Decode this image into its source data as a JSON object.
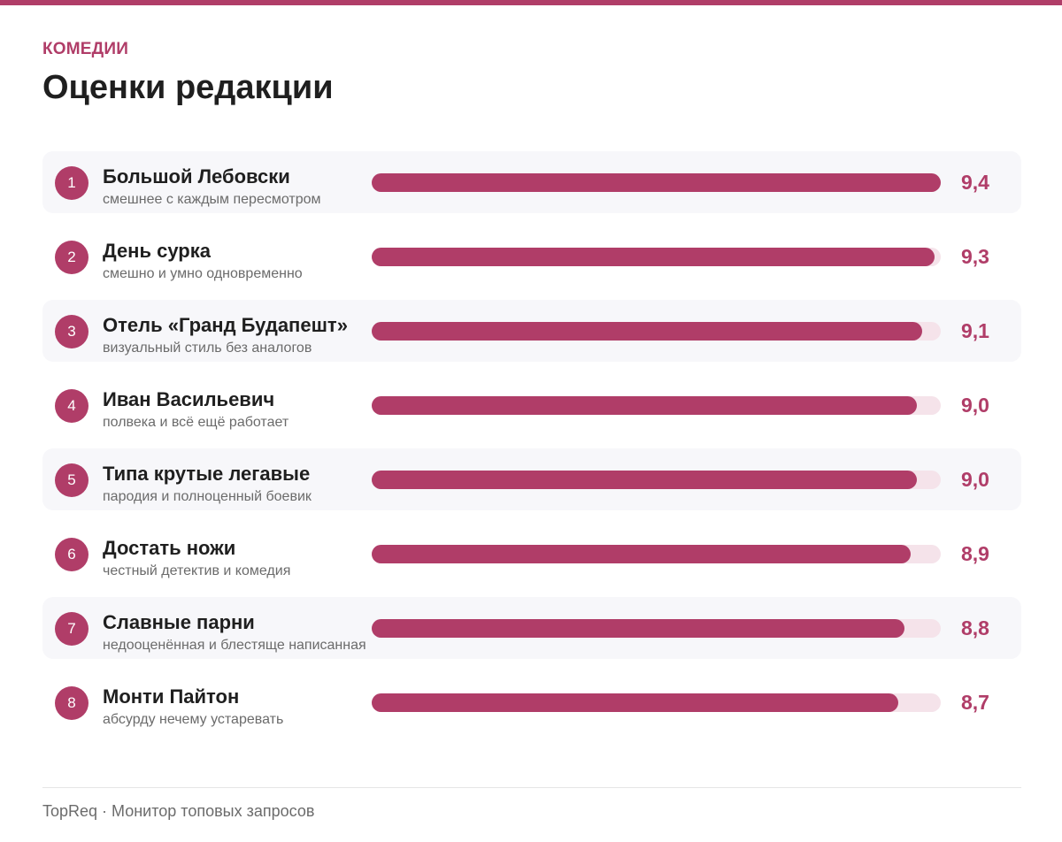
{
  "header": {
    "category": "КОМЕДИИ",
    "title": "Оценки редакции"
  },
  "colors": {
    "accent": "#b03d68",
    "track": "#f5e3ea",
    "row_alt": "#f7f7fa"
  },
  "chart_data": {
    "type": "bar",
    "orientation": "horizontal",
    "xlim": [
      0,
      9.4
    ],
    "categories": [
      "Большой Лебовски",
      "День сурка",
      "Отель «Гранд Будапешт»",
      "Иван Васильевич",
      "Типа крутые легавые",
      "Достать ножи",
      "Славные парни",
      "Монти Пайтон"
    ],
    "values": [
      9.4,
      9.3,
      9.1,
      9.0,
      9.0,
      8.9,
      8.8,
      8.7
    ],
    "items": [
      {
        "rank": "1",
        "name": "Большой Лебовски",
        "note": "смешнее с каждым пересмотром",
        "score": "9,4",
        "value": 9.4
      },
      {
        "rank": "2",
        "name": "День сурка",
        "note": "смешно и умно одновременно",
        "score": "9,3",
        "value": 9.3
      },
      {
        "rank": "3",
        "name": "Отель «Гранд Будапешт»",
        "note": "визуальный стиль без аналогов",
        "score": "9,1",
        "value": 9.1
      },
      {
        "rank": "4",
        "name": "Иван Васильевич",
        "note": "полвека и всё ещё работает",
        "score": "9,0",
        "value": 9.0
      },
      {
        "rank": "5",
        "name": "Типа крутые легавые",
        "note": "пародия и полноценный боевик",
        "score": "9,0",
        "value": 9.0
      },
      {
        "rank": "6",
        "name": "Достать ножи",
        "note": "честный детектив и комедия",
        "score": "8,9",
        "value": 8.9
      },
      {
        "rank": "7",
        "name": "Славные парни",
        "note": "недооценённая и блестяще написанная",
        "score": "8,8",
        "value": 8.8
      },
      {
        "rank": "8",
        "name": "Монти Пайтон",
        "note": "абсурду нечему устаревать",
        "score": "8,7",
        "value": 8.7
      }
    ]
  },
  "footer": {
    "text": "TopReq · Монитор топовых запросов"
  }
}
